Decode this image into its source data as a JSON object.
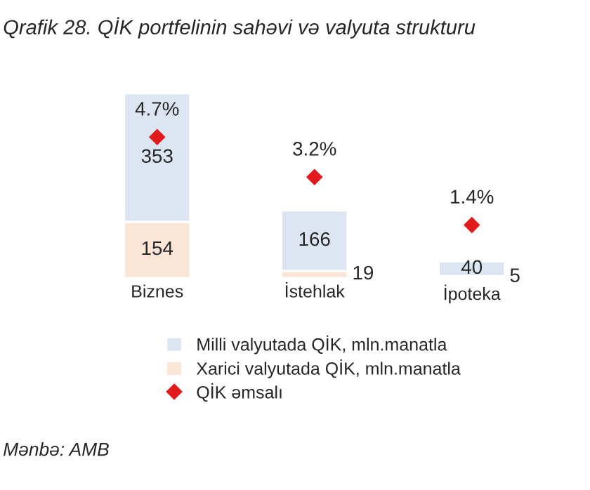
{
  "chart_data": {
    "type": "bar",
    "title": "Qrafik 28. QİK portfelinin sahəvi və valyuta strukturu",
    "categories": [
      "Biznes",
      "İstehlak",
      "İpoteka"
    ],
    "stacked": true,
    "tick_labels": "x",
    "legend": "bottom",
    "grid": false,
    "annotations": [
      "Mənbə: AMB"
    ],
    "series": [
      {
        "name": "Xarici valyutada QİK, mln.manatla",
        "color": "#fbe5d6",
        "values": [
          154,
          19,
          5
        ],
        "value_labels": [
          "154",
          "19",
          "5"
        ]
      },
      {
        "name": "Milli valyutada QİK, mln.manatla",
        "color": "#dce6f2",
        "values": [
          353,
          166,
          40
        ],
        "value_labels": [
          "353",
          "166",
          "40"
        ]
      },
      {
        "name": "QİK əmsalı",
        "type": "scatter",
        "axis": "y2",
        "marker": "diamond",
        "color": "#e31a1c",
        "values": [
          4.7,
          3.2,
          1.4
        ],
        "value_labels": [
          "4.7%",
          "3.2%",
          "1.4%"
        ]
      }
    ]
  }
}
